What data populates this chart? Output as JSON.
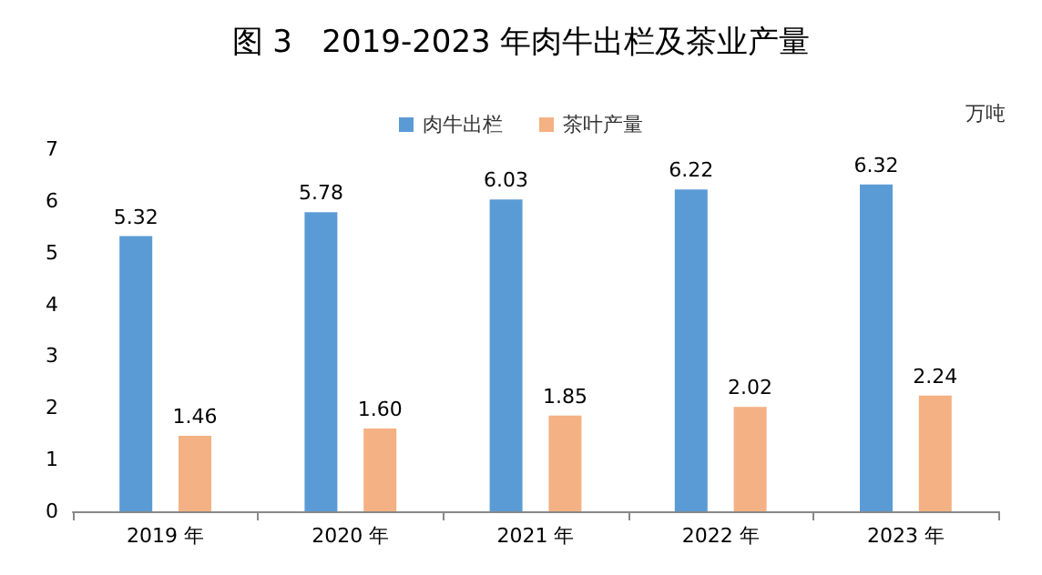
{
  "chart_data": {
    "type": "bar",
    "title": "图 3   2019-2023 年肉牛出栏及茶业产量",
    "ylabel": "万吨",
    "categories": [
      "2019 年",
      "2020 年",
      "2021 年",
      "2022 年",
      "2023 年"
    ],
    "series": [
      {
        "name": "肉牛出栏",
        "color": "#5b9bd5",
        "values": [
          5.32,
          5.78,
          6.03,
          6.22,
          6.32
        ],
        "value_labels": [
          "5.32",
          "5.78",
          "6.03",
          "6.22",
          "6.32"
        ]
      },
      {
        "name": "茶叶产量",
        "color": "#f4b183",
        "values": [
          1.46,
          1.6,
          1.85,
          2.02,
          2.24
        ],
        "value_labels": [
          "1.46",
          "1.60",
          "1.85",
          "2.02",
          "2.24"
        ]
      }
    ],
    "ylim": [
      0,
      7
    ],
    "yticks": [
      0,
      1,
      2,
      3,
      4,
      5,
      6,
      7
    ],
    "grid": false,
    "legend": "top"
  }
}
